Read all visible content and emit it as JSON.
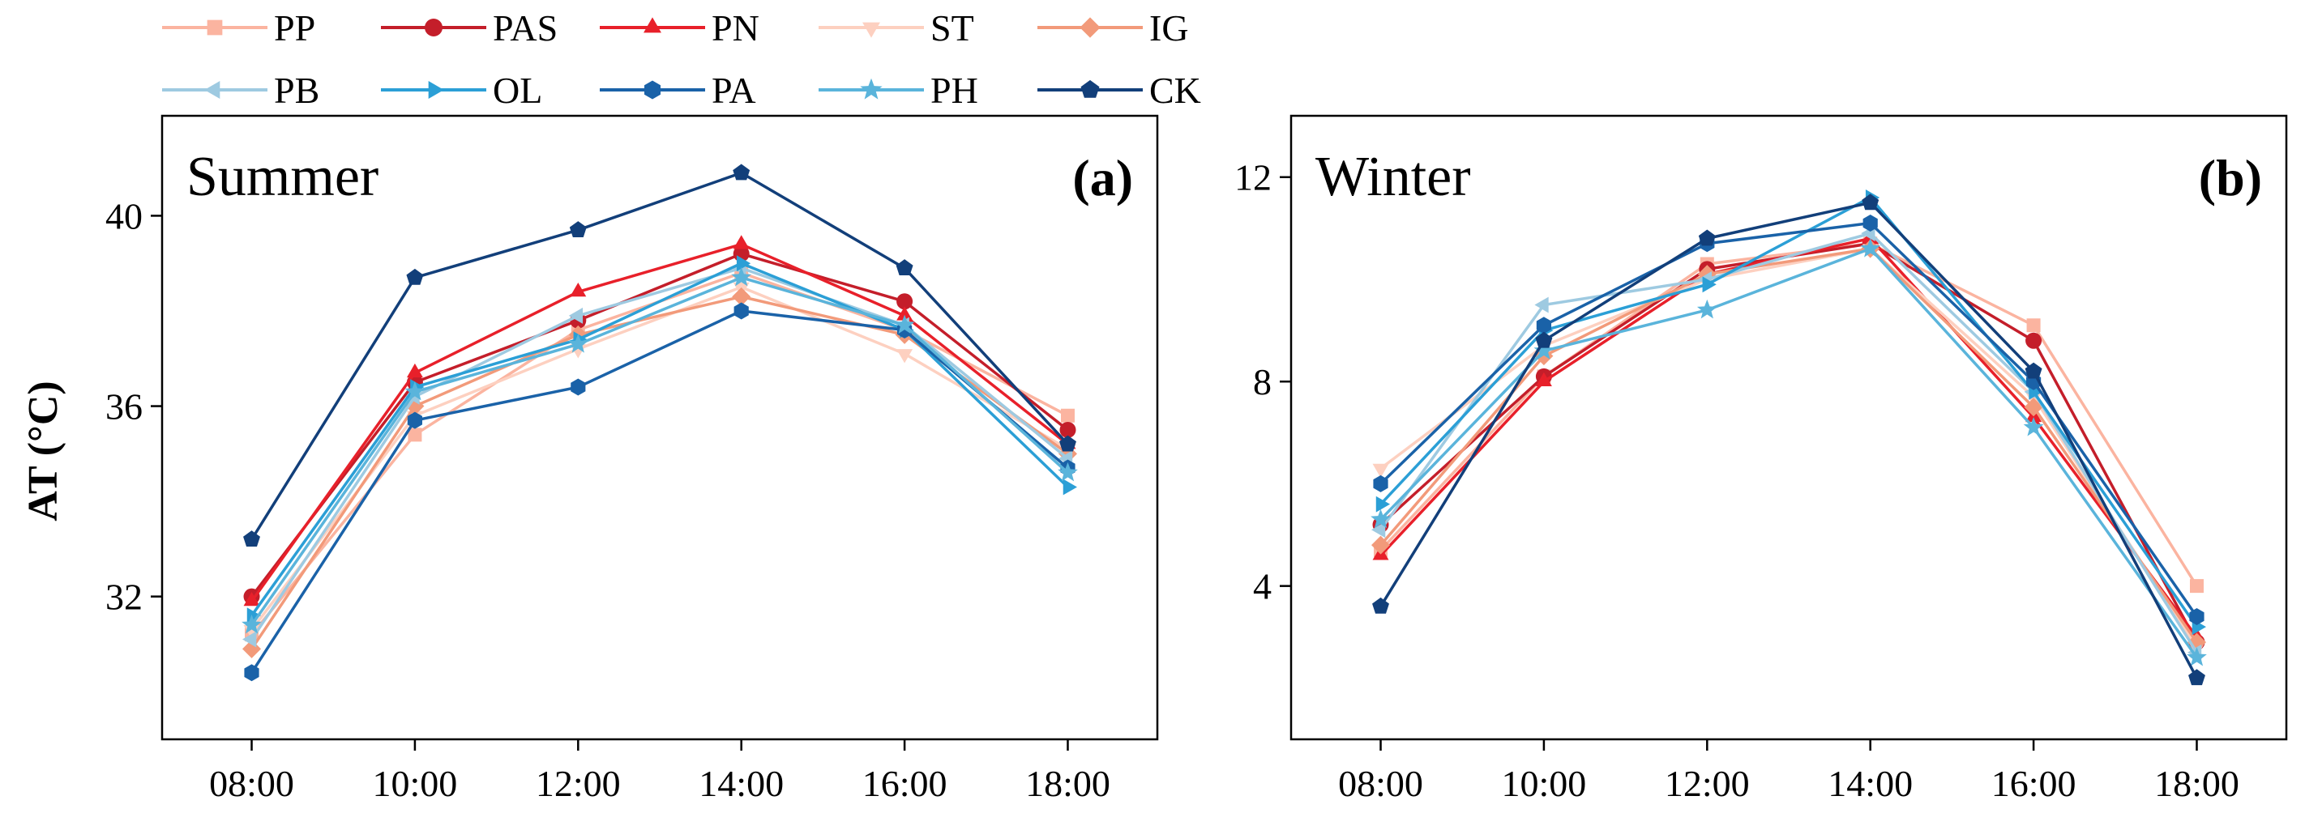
{
  "chart_data": {
    "type": "line",
    "ylabel": "AT (°C)",
    "categories": [
      "08:00",
      "10:00",
      "12:00",
      "14:00",
      "16:00",
      "18:00"
    ],
    "series_styles": [
      {
        "name": "PP",
        "color": "#fbb4a0",
        "marker": "square"
      },
      {
        "name": "PAS",
        "color": "#c41e2a",
        "marker": "circle"
      },
      {
        "name": "PN",
        "color": "#e8202a",
        "marker": "triangle-up"
      },
      {
        "name": "ST",
        "color": "#fdd0c0",
        "marker": "triangle-down"
      },
      {
        "name": "IG",
        "color": "#f29a7a",
        "marker": "diamond"
      },
      {
        "name": "PB",
        "color": "#9ecae1",
        "marker": "triangle-left"
      },
      {
        "name": "OL",
        "color": "#2b9fd6",
        "marker": "triangle-right"
      },
      {
        "name": "PA",
        "color": "#1a62a8",
        "marker": "hexagon"
      },
      {
        "name": "PH",
        "color": "#5ab4db",
        "marker": "star"
      },
      {
        "name": "CK",
        "color": "#123f7a",
        "marker": "pentagon"
      }
    ],
    "panels": [
      {
        "title": "Summer",
        "letter": "(a)",
        "ylim": [
          29,
          42.1
        ],
        "yticks": [
          32,
          36,
          40
        ],
        "series": [
          {
            "name": "PP",
            "values": [
              31.2,
              35.4,
              37.6,
              38.8,
              37.6,
              35.8
            ]
          },
          {
            "name": "PAS",
            "values": [
              32.0,
              36.5,
              37.8,
              39.2,
              38.2,
              35.5
            ]
          },
          {
            "name": "PN",
            "values": [
              31.9,
              36.7,
              38.4,
              39.4,
              37.9,
              35.2
            ]
          },
          {
            "name": "ST",
            "values": [
              31.3,
              35.8,
              37.2,
              38.5,
              37.1,
              35.1
            ]
          },
          {
            "name": "IG",
            "values": [
              30.9,
              36.0,
              37.5,
              38.3,
              37.5,
              35.0
            ]
          },
          {
            "name": "PB",
            "values": [
              31.1,
              36.2,
              37.9,
              38.9,
              37.7,
              34.9
            ]
          },
          {
            "name": "OL",
            "values": [
              31.6,
              36.4,
              37.4,
              39.0,
              37.6,
              34.3
            ]
          },
          {
            "name": "PA",
            "values": [
              30.4,
              35.7,
              36.4,
              38.0,
              37.6,
              34.7
            ]
          },
          {
            "name": "PH",
            "values": [
              31.4,
              36.3,
              37.3,
              38.7,
              37.7,
              34.6
            ]
          },
          {
            "name": "CK",
            "values": [
              33.2,
              38.7,
              39.7,
              40.9,
              38.9,
              35.2
            ]
          }
        ]
      },
      {
        "title": "Winter",
        "letter": "(b)",
        "ylim": [
          1,
          13.2
        ],
        "yticks": [
          4,
          8,
          12
        ],
        "series": [
          {
            "name": "PP",
            "values": [
              4.7,
              8.1,
              10.3,
              10.7,
              9.1,
              4.0
            ]
          },
          {
            "name": "PAS",
            "values": [
              5.2,
              8.1,
              10.2,
              10.7,
              8.8,
              2.9
            ]
          },
          {
            "name": "PN",
            "values": [
              4.6,
              8.0,
              10.1,
              10.8,
              7.3,
              3.0
            ]
          },
          {
            "name": "ST",
            "values": [
              6.3,
              8.7,
              10.0,
              10.6,
              7.7,
              2.8
            ]
          },
          {
            "name": "IG",
            "values": [
              4.8,
              8.5,
              10.1,
              10.6,
              7.5,
              2.9
            ]
          },
          {
            "name": "PB",
            "values": [
              5.1,
              9.5,
              10.0,
              10.9,
              7.8,
              2.7
            ]
          },
          {
            "name": "OL",
            "values": [
              5.6,
              9.0,
              9.9,
              11.6,
              7.8,
              3.2
            ]
          },
          {
            "name": "PA",
            "values": [
              6.0,
              9.1,
              10.7,
              11.1,
              8.0,
              3.4
            ]
          },
          {
            "name": "PH",
            "values": [
              5.3,
              8.6,
              9.4,
              10.6,
              7.1,
              2.6
            ]
          },
          {
            "name": "CK",
            "values": [
              3.6,
              8.8,
              10.8,
              11.5,
              8.2,
              2.2
            ]
          }
        ]
      }
    ]
  }
}
